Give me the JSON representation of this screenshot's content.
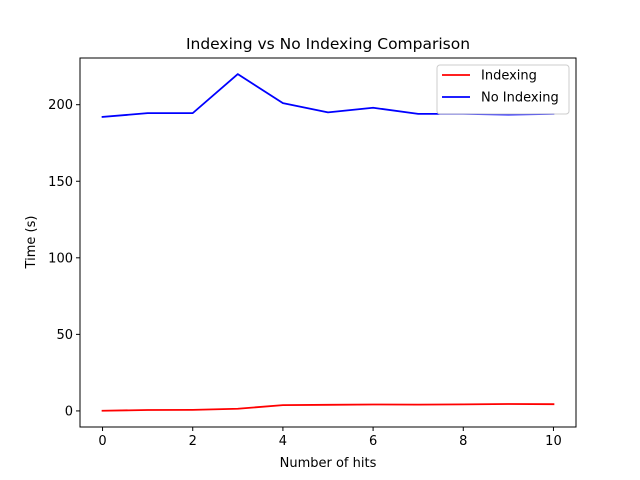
{
  "chart_data": {
    "type": "line",
    "title": "Indexing vs No Indexing Comparison",
    "xlabel": "Number of hits",
    "ylabel": "Time (s)",
    "x": [
      0,
      1,
      2,
      3,
      4,
      5,
      6,
      7,
      8,
      9,
      10
    ],
    "xlim": [
      -0.5,
      10.5
    ],
    "ylim": [
      -10.5,
      230.5
    ],
    "xticks": [
      0,
      2,
      4,
      6,
      8,
      10
    ],
    "yticks": [
      0,
      50,
      100,
      150,
      200
    ],
    "xtick_labels": [
      "0",
      "2",
      "4",
      "6",
      "8",
      "10"
    ],
    "ytick_labels": [
      "0",
      "50",
      "100",
      "150",
      "200"
    ],
    "grid": false,
    "legend_position": "top-right",
    "series": [
      {
        "name": "Indexing",
        "color": "#ff0000",
        "values": [
          0.1,
          0.6,
          0.7,
          1.4,
          3.8,
          4.0,
          4.2,
          4.1,
          4.3,
          4.5,
          4.4
        ]
      },
      {
        "name": "No Indexing",
        "color": "#0000ff",
        "values": [
          192.0,
          194.5,
          194.5,
          220.0,
          201.0,
          195.0,
          198.0,
          194.0,
          194.0,
          193.5,
          194.0
        ]
      }
    ]
  }
}
